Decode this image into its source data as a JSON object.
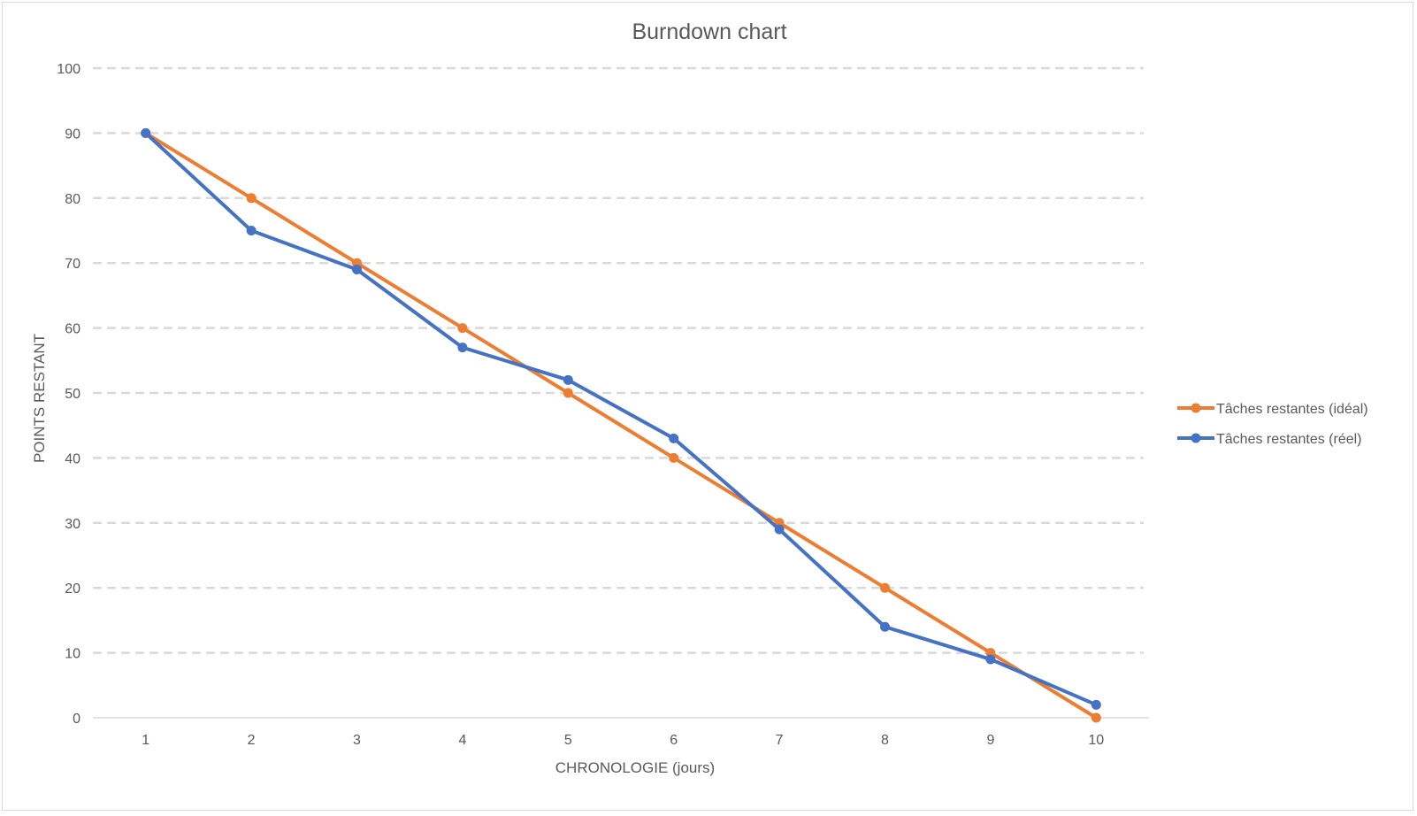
{
  "chart_data": {
    "type": "line",
    "title": "Burndown chart",
    "xlabel": "CHRONOLOGIE (jours)",
    "ylabel": "POINTS RESTANT",
    "x": [
      1,
      2,
      3,
      4,
      5,
      6,
      7,
      8,
      9,
      10
    ],
    "ylim": [
      0,
      100
    ],
    "yticks": [
      0,
      10,
      20,
      30,
      40,
      50,
      60,
      70,
      80,
      90,
      100
    ],
    "grid": true,
    "grid_style": "dashed",
    "legend_position": "right",
    "series": [
      {
        "name": "Tâches restantes (idéal)",
        "color": "#ED7D31",
        "values": [
          90,
          80,
          70,
          60,
          50,
          40,
          30,
          20,
          10,
          0
        ]
      },
      {
        "name": "Tâches restantes (réel)",
        "color": "#4472C4",
        "values": [
          90,
          75,
          69,
          57,
          52,
          43,
          29,
          14,
          9,
          2
        ]
      }
    ]
  }
}
